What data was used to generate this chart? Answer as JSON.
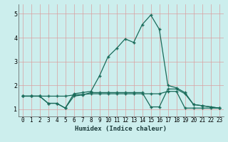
{
  "title": "",
  "xlabel": "Humidex (Indice chaleur)",
  "ylabel": "",
  "bg_color": "#cceeed",
  "grid_color": "#d9a0a0",
  "line_color": "#1a6b5a",
  "xlim": [
    -0.5,
    23.5
  ],
  "ylim": [
    0.7,
    5.4
  ],
  "yticks": [
    1,
    2,
    3,
    4,
    5
  ],
  "xticks": [
    0,
    1,
    2,
    3,
    4,
    5,
    6,
    7,
    8,
    9,
    10,
    11,
    12,
    13,
    14,
    15,
    16,
    17,
    18,
    19,
    20,
    21,
    22,
    23
  ],
  "line1_x": [
    0,
    1,
    2,
    3,
    4,
    5,
    6,
    7,
    8,
    9,
    10,
    11,
    12,
    13,
    14,
    15,
    16,
    17,
    18,
    19,
    20,
    21,
    22,
    23
  ],
  "line1_y": [
    1.55,
    1.55,
    1.55,
    1.55,
    1.55,
    1.55,
    1.6,
    1.62,
    1.65,
    1.65,
    1.65,
    1.65,
    1.65,
    1.65,
    1.65,
    1.65,
    1.65,
    1.75,
    1.75,
    1.05,
    1.05,
    1.05,
    1.05,
    1.05
  ],
  "line2_x": [
    0,
    1,
    2,
    3,
    4,
    5,
    6,
    7,
    8,
    9,
    10,
    11,
    12,
    13,
    14,
    15,
    16,
    17,
    18,
    19,
    20,
    21,
    22,
    23
  ],
  "line2_y": [
    1.55,
    1.55,
    1.55,
    1.25,
    1.25,
    1.05,
    1.55,
    1.6,
    1.7,
    1.7,
    1.7,
    1.7,
    1.7,
    1.7,
    1.7,
    1.1,
    1.1,
    1.85,
    1.85,
    1.65,
    1.2,
    1.15,
    1.1,
    1.05
  ],
  "line3_x": [
    0,
    1,
    2,
    3,
    4,
    5,
    6,
    7,
    8,
    9,
    10,
    11,
    12,
    13,
    14,
    15,
    16,
    17,
    18,
    19,
    20,
    21,
    22,
    23
  ],
  "line3_y": [
    1.55,
    1.55,
    1.55,
    1.25,
    1.25,
    1.05,
    1.65,
    1.7,
    1.75,
    2.4,
    3.2,
    3.55,
    3.95,
    3.8,
    4.55,
    4.95,
    4.35,
    2.0,
    1.9,
    1.7,
    1.2,
    1.15,
    1.1,
    1.05
  ]
}
